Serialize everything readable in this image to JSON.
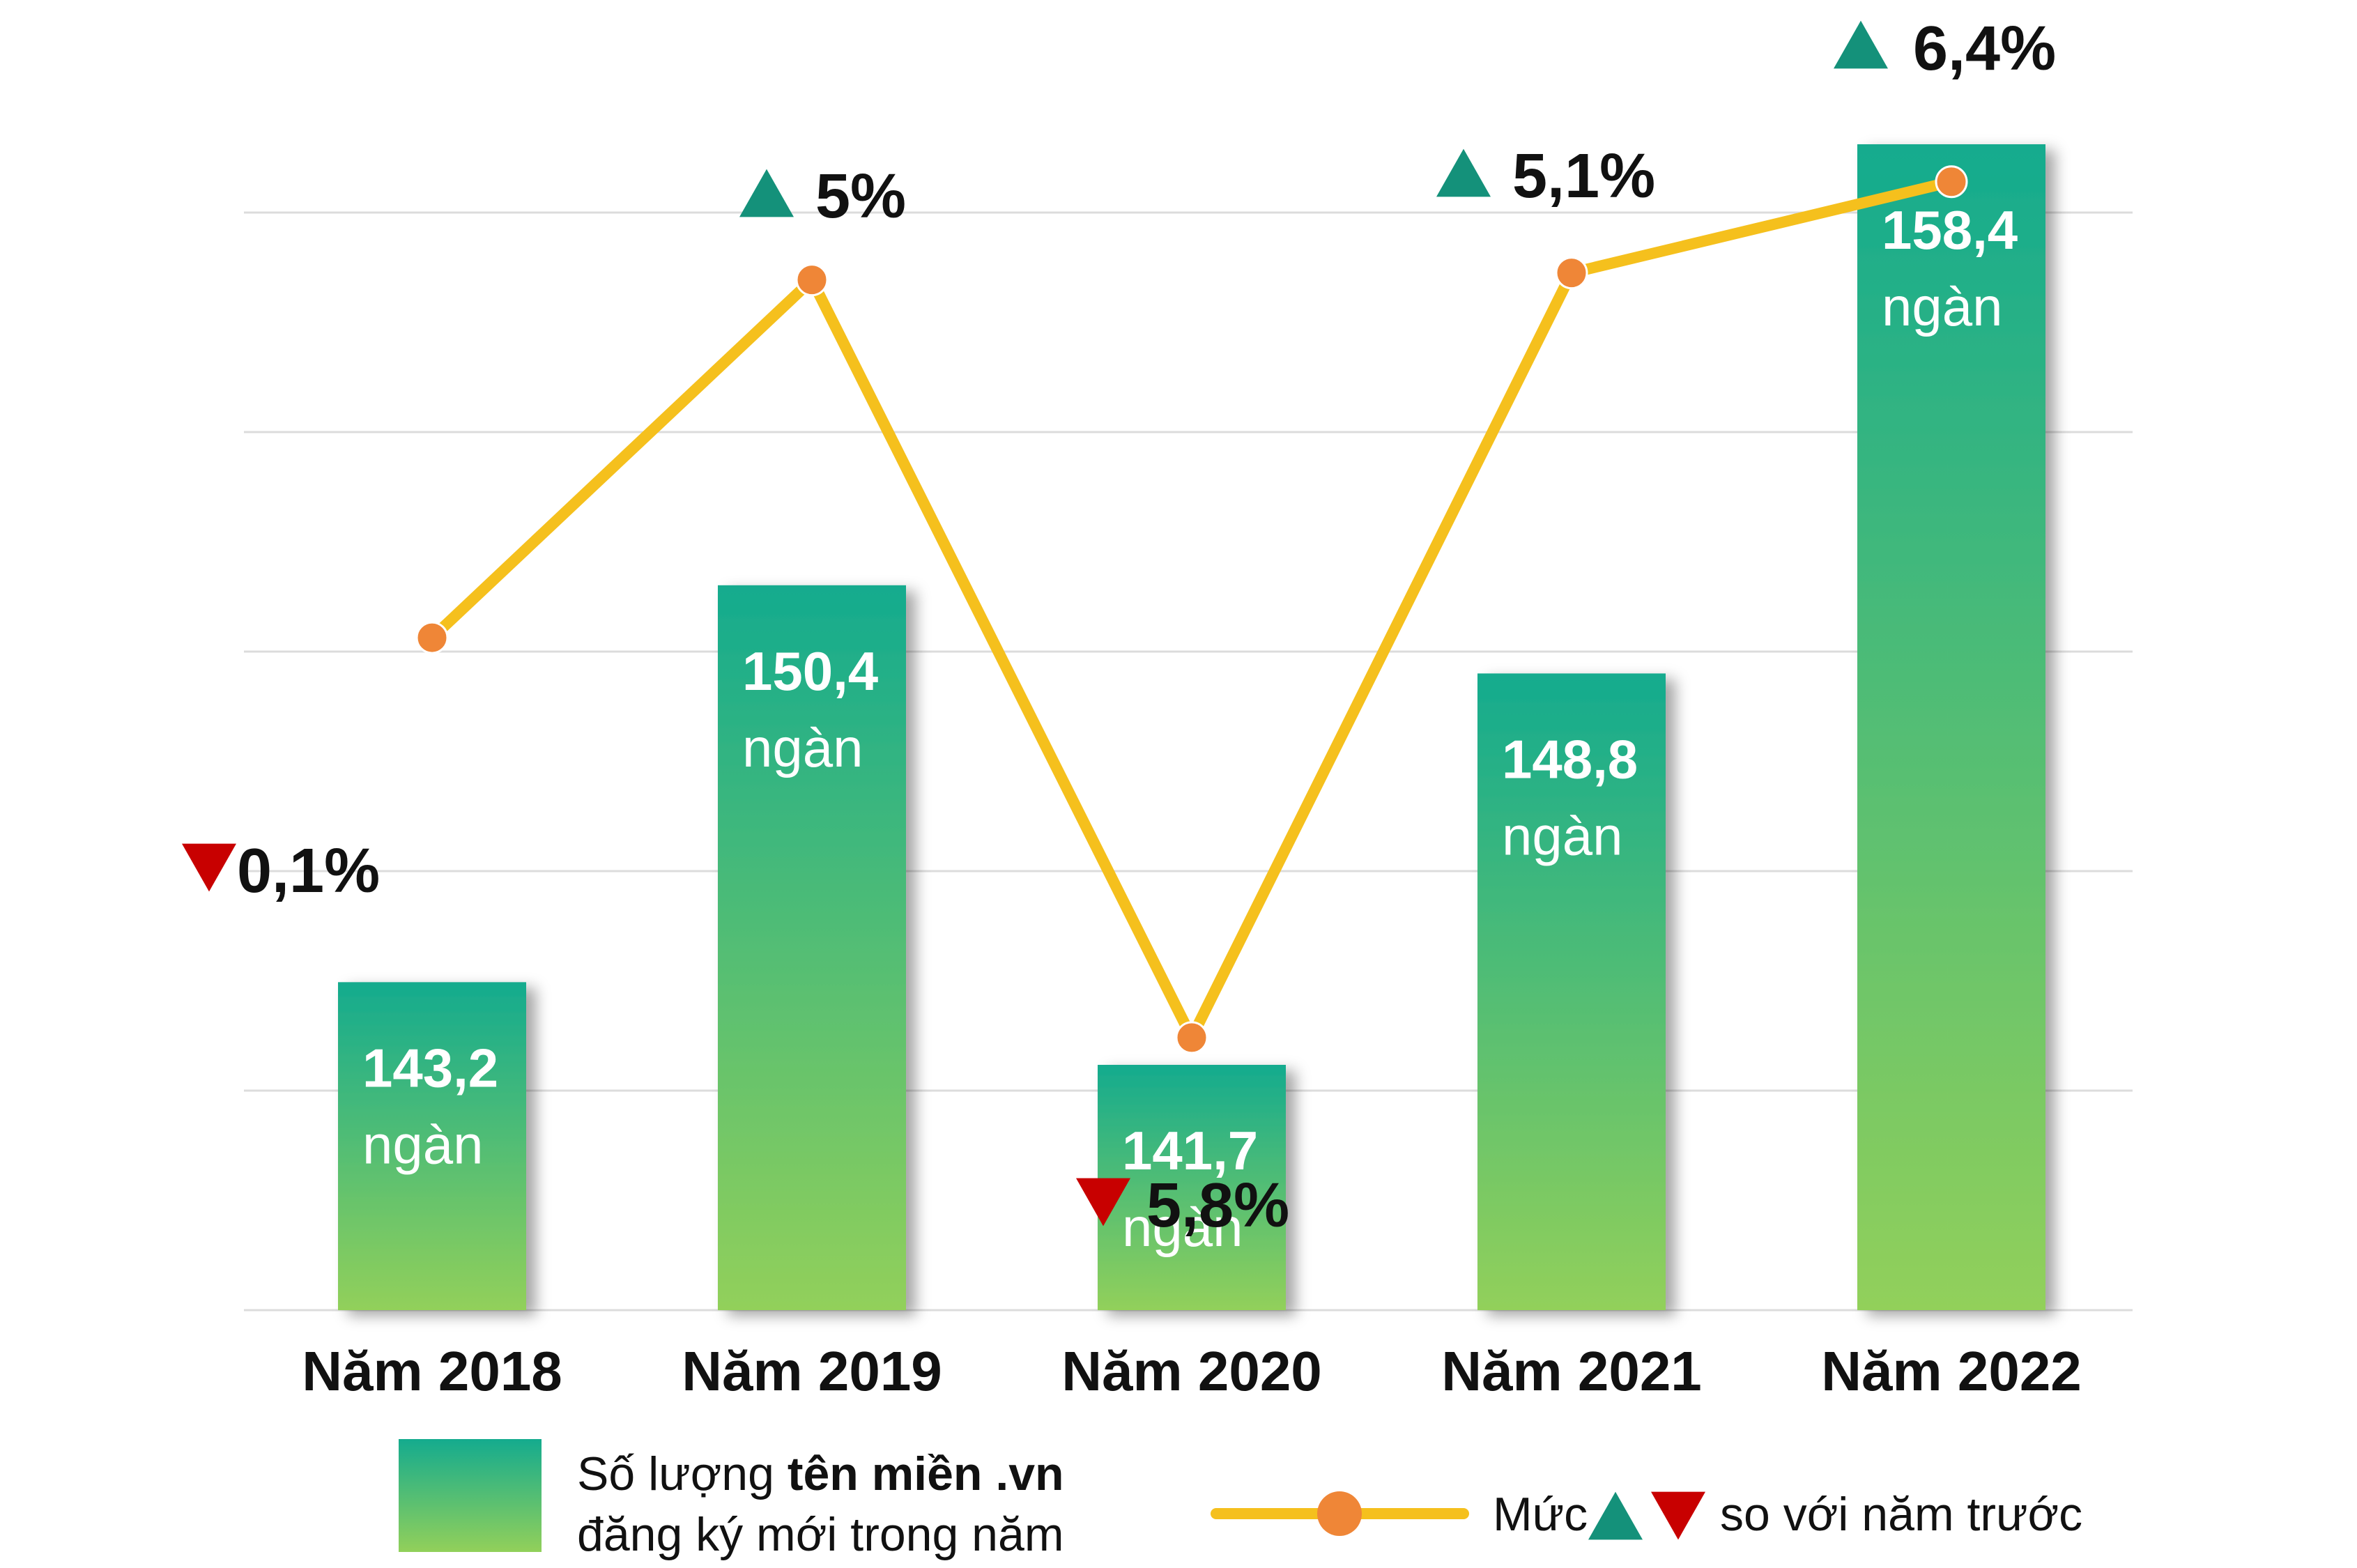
{
  "chart_data": {
    "type": "bar",
    "categories": [
      "Năm 2018",
      "Năm 2019",
      "Năm 2020",
      "Năm 2021",
      "Năm 2022"
    ],
    "series": [
      {
        "name": "Số lượng tên miền .vn đăng ký mới trong năm",
        "values": [
          143.2,
          150.4,
          141.7,
          148.8,
          158.4
        ],
        "labels": [
          "143,2",
          "150,4",
          "141,7",
          "148,8",
          "158,4"
        ],
        "unit": "ngàn"
      },
      {
        "name": "Mức ▲▼ so với năm trước",
        "type": "line",
        "values": [
          -0.1,
          5,
          -5.8,
          5.1,
          6.4
        ],
        "labels": [
          "0,1%",
          "5%",
          "5,8%",
          "5,1%",
          "6,4%"
        ],
        "directions": [
          "down",
          "up",
          "down",
          "up",
          "up"
        ]
      }
    ],
    "grid": true,
    "legend_placement": "bottom"
  },
  "legend": {
    "bars_line1_prefix": "Số lượng ",
    "bars_line1_bold": "tên miền .vn",
    "bars_line2": "đăng ký mới trong năm",
    "line_prefix": "Mức",
    "line_suffix": "so với năm trước"
  },
  "colors": {
    "bar_top": "#14ab8e",
    "bar_bottom": "#92d05a",
    "line": "#f5c01d",
    "marker": "#ef8637",
    "up": "#14917a",
    "down": "#c80000",
    "grid": "#dcdcdc"
  }
}
